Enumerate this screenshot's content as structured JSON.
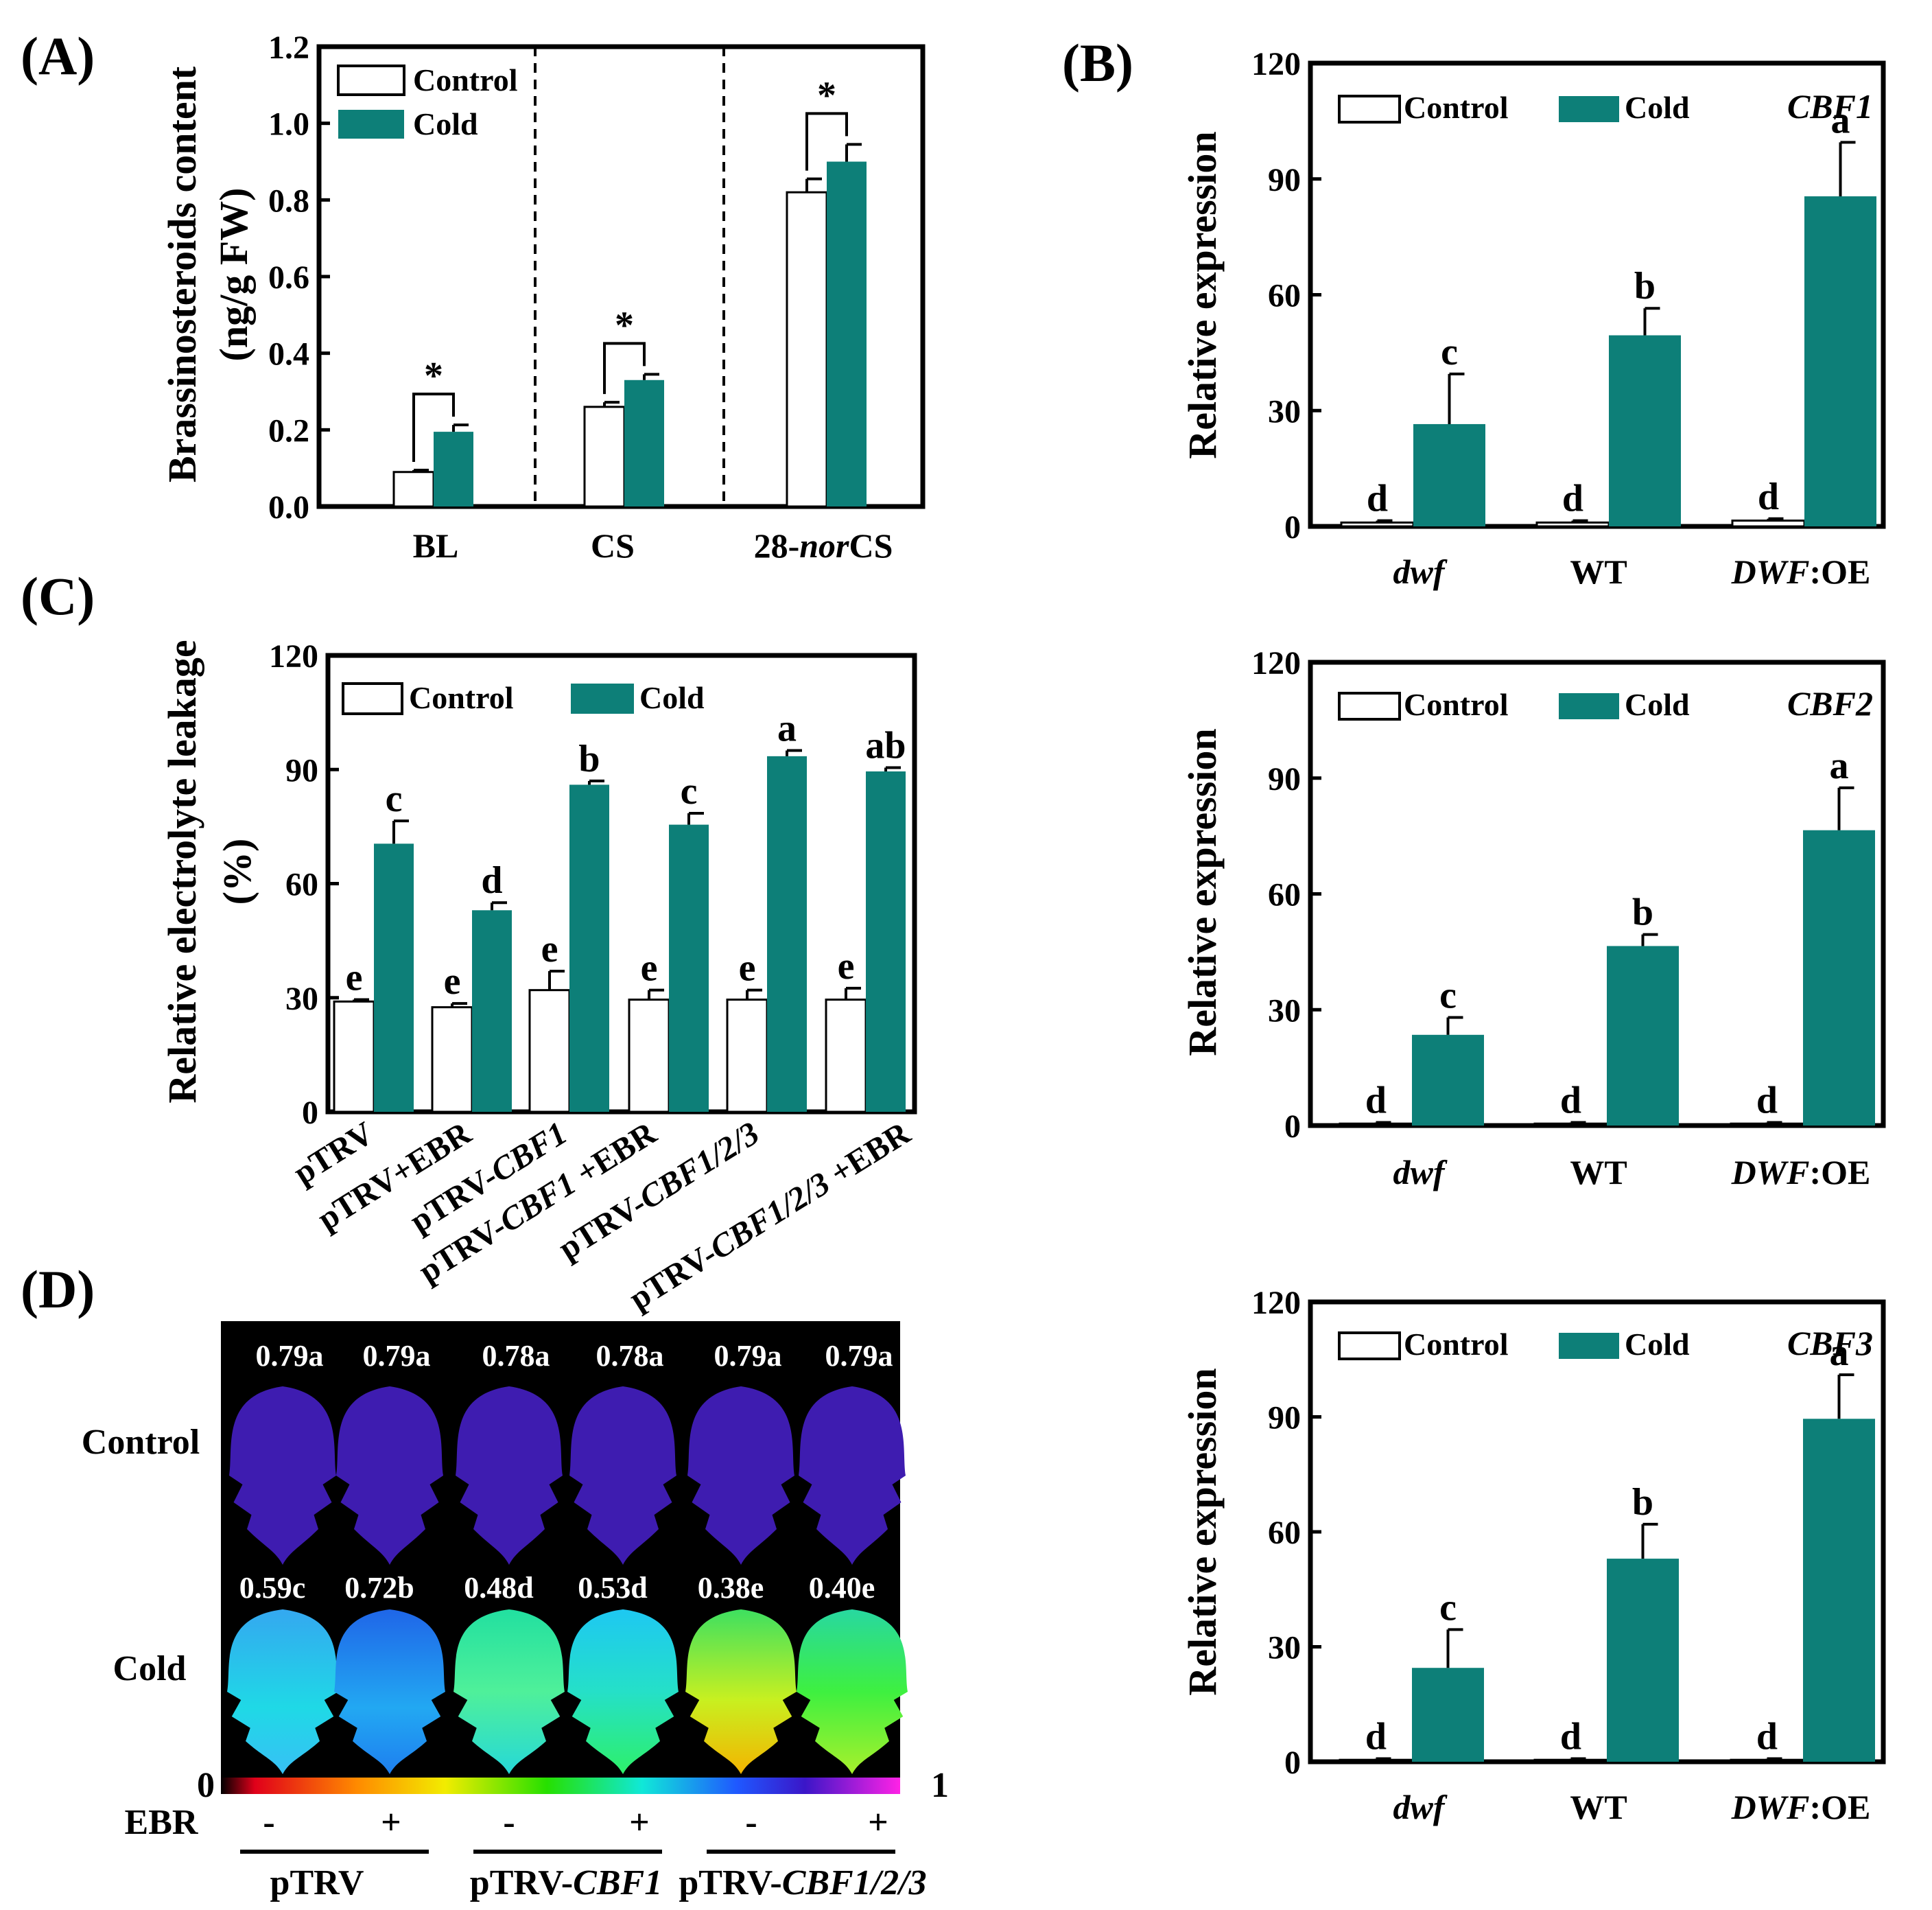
{
  "colors": {
    "control_fill": "#ffffff",
    "cold_fill": "#0d7f78",
    "axis": "#000000"
  },
  "chart_data": [
    {
      "panel": "(A)",
      "type": "bar",
      "ylabel_line1": "Brassinosteroids content",
      "ylabel_line2": "(ng/g FW)",
      "ylim": [
        0,
        1.2
      ],
      "yticks": [
        "0.0",
        "0.2",
        "0.4",
        "0.6",
        "0.8",
        "1.0",
        "1.2"
      ],
      "categories": [
        "BL",
        "CS",
        "28-norCS"
      ],
      "category_parts": [
        [
          "BL",
          ""
        ],
        [
          "CS",
          ""
        ],
        [
          "28-",
          "nor",
          "CS"
        ]
      ],
      "legend": [
        "Control",
        "Cold"
      ],
      "series": [
        {
          "name": "Control",
          "values": [
            0.09,
            0.26,
            0.82
          ],
          "errors": [
            0.005,
            0.012,
            0.035
          ]
        },
        {
          "name": "Cold",
          "values": [
            0.195,
            0.33,
            0.9
          ],
          "errors": [
            0.018,
            0.015,
            0.045
          ]
        }
      ],
      "significance": [
        "*",
        "*",
        "*"
      ]
    },
    {
      "panel": "(B)",
      "type": "bar",
      "gene": "CBF1",
      "ylabel": "Relative expression",
      "ylim": [
        0,
        120
      ],
      "yticks": [
        "0",
        "30",
        "60",
        "90",
        "120"
      ],
      "categories": [
        "dwf",
        "WT",
        "DWF:OE"
      ],
      "legend": [
        "Control",
        "Cold"
      ],
      "series": [
        {
          "name": "Control",
          "values": [
            1,
            1,
            1.5
          ],
          "errors": [
            0.5,
            0.5,
            0.5
          ],
          "letters": [
            "d",
            "d",
            "d"
          ]
        },
        {
          "name": "Cold",
          "values": [
            26.5,
            49.5,
            85.5
          ],
          "errors": [
            13,
            7,
            14
          ],
          "letters": [
            "c",
            "b",
            "a"
          ]
        }
      ]
    },
    {
      "panel": "(B2)",
      "type": "bar",
      "gene": "CBF2",
      "ylabel": "Relative expression",
      "ylim": [
        0,
        120
      ],
      "yticks": [
        "0",
        "30",
        "60",
        "90",
        "120"
      ],
      "categories": [
        "dwf",
        "WT",
        "DWF:OE"
      ],
      "legend": [
        "Control",
        "Cold"
      ],
      "series": [
        {
          "name": "Control",
          "values": [
            0.5,
            0.5,
            0.5
          ],
          "errors": [
            0.3,
            0.3,
            0.3
          ],
          "letters": [
            "d",
            "d",
            "d"
          ]
        },
        {
          "name": "Cold",
          "values": [
            23.5,
            46.5,
            76.5
          ],
          "errors": [
            4.5,
            3,
            11
          ],
          "letters": [
            "c",
            "b",
            "a"
          ]
        }
      ]
    },
    {
      "panel": "(B3)",
      "type": "bar",
      "gene": "CBF3",
      "ylabel": "Relative expression",
      "ylim": [
        0,
        120
      ],
      "yticks": [
        "0",
        "30",
        "60",
        "90",
        "120"
      ],
      "categories": [
        "dwf",
        "WT",
        "DWF:OE"
      ],
      "legend": [
        "Control",
        "Cold"
      ],
      "series": [
        {
          "name": "Control",
          "values": [
            0.5,
            0.5,
            0.5
          ],
          "errors": [
            0.3,
            0.3,
            0.3
          ],
          "letters": [
            "d",
            "d",
            "d"
          ]
        },
        {
          "name": "Cold",
          "values": [
            24.5,
            53,
            89.5
          ],
          "errors": [
            10,
            9,
            11.5
          ],
          "letters": [
            "c",
            "b",
            "a"
          ]
        }
      ]
    },
    {
      "panel": "(C)",
      "type": "bar",
      "ylabel_line1": "Relative electrolyte leakage",
      "ylabel_line2": "(%)",
      "ylim": [
        0,
        120
      ],
      "yticks": [
        "0",
        "30",
        "60",
        "90",
        "120"
      ],
      "categories": [
        "pTRV",
        "pTRV+EBR",
        "pTRV-CBF1",
        "pTRV-CBF1 +EBR",
        "pTRV-CBF1/2/3",
        "pTRV-CBF1/2/3 +EBR"
      ],
      "legend": [
        "Control",
        "Cold"
      ],
      "series": [
        {
          "name": "Control",
          "values": [
            29,
            27.5,
            32,
            29.5,
            29.5,
            29.5
          ],
          "errors": [
            0.5,
            1,
            5,
            2.5,
            2.5,
            3
          ],
          "letters": [
            "e",
            "e",
            "e",
            "e",
            "e",
            "e"
          ]
        },
        {
          "name": "Cold",
          "values": [
            70.5,
            53,
            86,
            75.5,
            93.5,
            89.5
          ],
          "errors": [
            6,
            2,
            1,
            3,
            1.5,
            1
          ],
          "letters": [
            "c",
            "d",
            "b",
            "c",
            "a",
            "ab"
          ]
        }
      ]
    }
  ],
  "panel_d": {
    "label": "(D)",
    "rows": [
      "Control",
      "Cold"
    ],
    "control_values": [
      "0.79a",
      "0.79a",
      "0.78a",
      "0.78a",
      "0.79a",
      "0.79a"
    ],
    "cold_values": [
      "0.59c",
      "0.72b",
      "0.48d",
      "0.53d",
      "0.38e",
      "0.40e"
    ],
    "scale_min": "0",
    "scale_max": "1",
    "ebr_label": "EBR",
    "ebr_signs": [
      "-",
      "+",
      "-",
      "+",
      "-",
      "+"
    ],
    "groups": [
      "pTRV",
      "pTRV-CBF1",
      "pTRV-CBF1/2/3"
    ]
  }
}
